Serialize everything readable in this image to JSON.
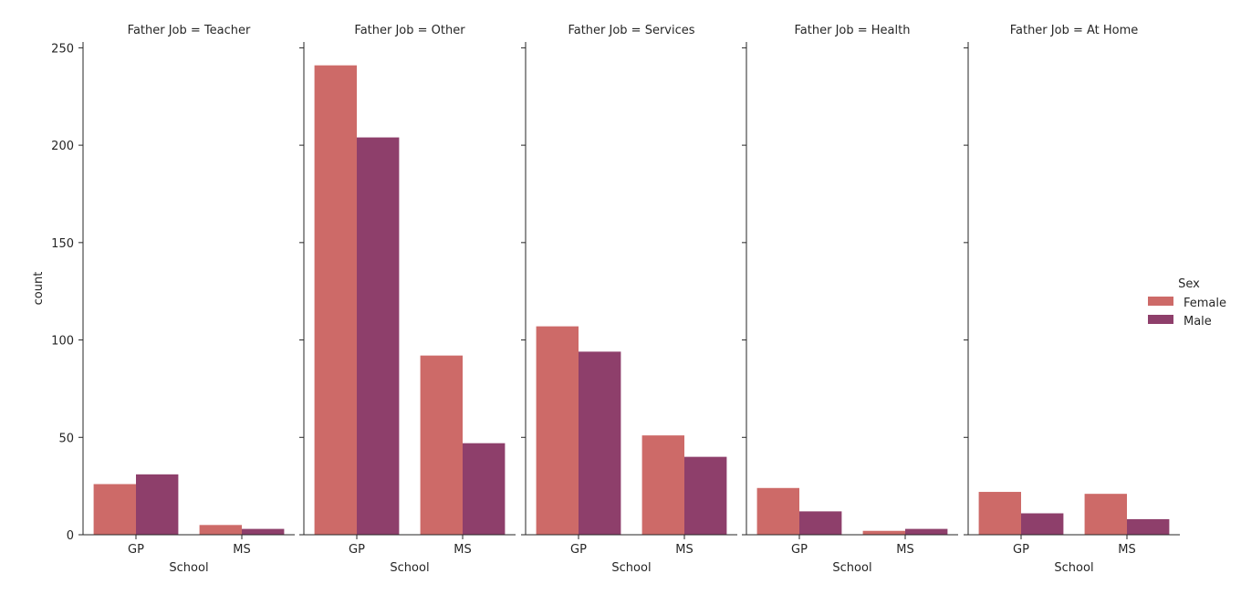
{
  "chart_data": {
    "type": "bar",
    "ylabel": "count",
    "xlabel": "School",
    "ylim": [
      0,
      253
    ],
    "yticks": [
      0,
      50,
      100,
      150,
      200,
      250
    ],
    "categories": [
      "GP",
      "MS"
    ],
    "legend": {
      "title": "Sex",
      "placement": "right",
      "entries": [
        {
          "name": "Female",
          "color": "#cd6a68"
        },
        {
          "name": "Male",
          "color": "#8e3f6b"
        }
      ]
    },
    "grid": false,
    "facets": [
      {
        "title": "Father Job = Teacher",
        "series": [
          {
            "name": "Female",
            "values": [
              26,
              5
            ]
          },
          {
            "name": "Male",
            "values": [
              31,
              3
            ]
          }
        ]
      },
      {
        "title": "Father Job = Other",
        "series": [
          {
            "name": "Female",
            "values": [
              241,
              92
            ]
          },
          {
            "name": "Male",
            "values": [
              204,
              47
            ]
          }
        ]
      },
      {
        "title": "Father Job = Services",
        "series": [
          {
            "name": "Female",
            "values": [
              107,
              51
            ]
          },
          {
            "name": "Male",
            "values": [
              94,
              40
            ]
          }
        ]
      },
      {
        "title": "Father Job = Health",
        "series": [
          {
            "name": "Female",
            "values": [
              24,
              2
            ]
          },
          {
            "name": "Male",
            "values": [
              12,
              3
            ]
          }
        ]
      },
      {
        "title": "Father Job = At Home",
        "series": [
          {
            "name": "Female",
            "values": [
              22,
              21
            ]
          },
          {
            "name": "Male",
            "values": [
              11,
              8
            ]
          }
        ]
      }
    ]
  }
}
